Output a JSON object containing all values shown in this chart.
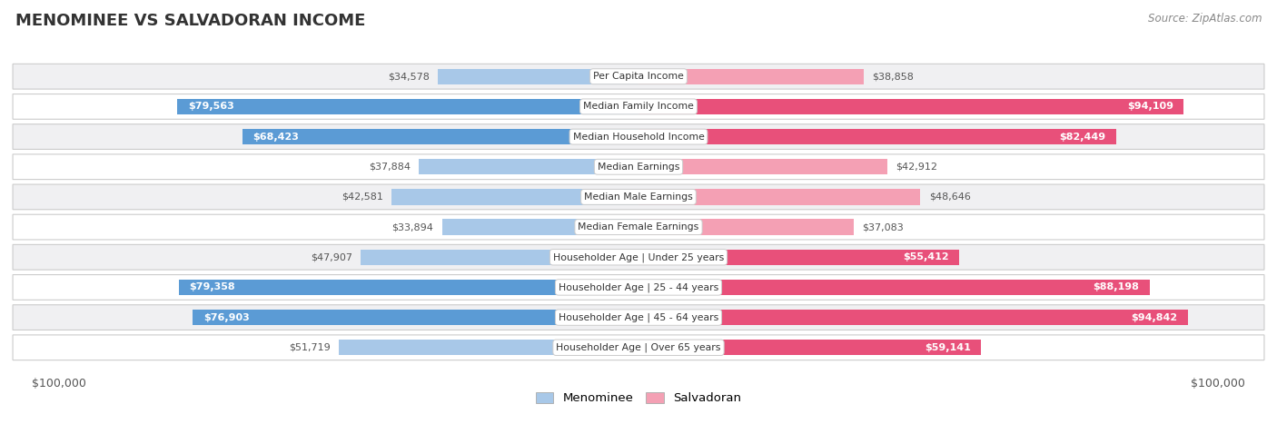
{
  "title": "MENOMINEE VS SALVADORAN INCOME",
  "source": "Source: ZipAtlas.com",
  "categories": [
    "Per Capita Income",
    "Median Family Income",
    "Median Household Income",
    "Median Earnings",
    "Median Male Earnings",
    "Median Female Earnings",
    "Householder Age | Under 25 years",
    "Householder Age | 25 - 44 years",
    "Householder Age | 45 - 64 years",
    "Householder Age | Over 65 years"
  ],
  "menominee_values": [
    34578,
    79563,
    68423,
    37884,
    42581,
    33894,
    47907,
    79358,
    76903,
    51719
  ],
  "salvadoran_values": [
    38858,
    94109,
    82449,
    42912,
    48646,
    37083,
    55412,
    88198,
    94842,
    59141
  ],
  "menominee_labels": [
    "$34,578",
    "$79,563",
    "$68,423",
    "$37,884",
    "$42,581",
    "$33,894",
    "$47,907",
    "$79,358",
    "$76,903",
    "$51,719"
  ],
  "salvadoran_labels": [
    "$38,858",
    "$94,109",
    "$82,449",
    "$42,912",
    "$48,646",
    "$37,083",
    "$55,412",
    "$88,198",
    "$94,842",
    "$59,141"
  ],
  "menominee_light": "#a8c8e8",
  "menominee_dark": "#5b9bd5",
  "salvadoran_light": "#f4a0b4",
  "salvadoran_dark": "#e8507a",
  "row_colors": [
    "#f0f0f2",
    "#ffffff",
    "#f0f0f2",
    "#ffffff",
    "#f0f0f2",
    "#ffffff",
    "#f0f0f2",
    "#ffffff",
    "#f0f0f2",
    "#ffffff"
  ],
  "max_value": 100000,
  "bar_height": 0.52,
  "inside_threshold": 55000,
  "label_white": "#ffffff",
  "label_dark": "#555555",
  "legend_menominee": "Menominee",
  "legend_salvadoran": "Salvadoran"
}
